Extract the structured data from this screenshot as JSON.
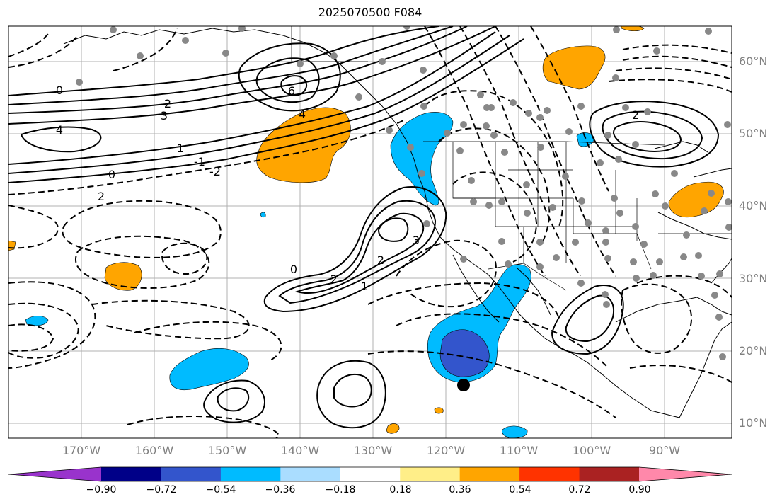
{
  "title": "2025070500 F084",
  "lat_labels": [
    "60°N",
    "50°N",
    "40°N",
    "30°N",
    "20°N",
    "10°N"
  ],
  "lon_labels": [
    "170°W",
    "160°W",
    "150°W",
    "140°W",
    "130°W",
    "120°W",
    "110°W",
    "100°W",
    "90°W"
  ],
  "colorbar": {
    "colors": [
      "#9933cc",
      "#000088",
      "#3355cc",
      "#00bbff",
      "#aaddff",
      "#ffffff",
      "#ffee88",
      "#ffa500",
      "#ff3300",
      "#aa2222",
      "#ff88aa"
    ],
    "tick_labels": [
      "−0.90",
      "−0.72",
      "−0.54",
      "−0.36",
      "−0.18",
      "0.18",
      "0.36",
      "0.54",
      "0.72",
      "0.90"
    ]
  },
  "contour_labels": [
    "0",
    "2",
    "4",
    "6",
    "3",
    "-2",
    "-1",
    "1",
    "0",
    "2",
    "-2",
    "1",
    "3",
    "0",
    "2",
    "2",
    "4"
  ],
  "marker": {
    "lat": 15.5,
    "lon": -117,
    "color": "#000000"
  },
  "station_color": "#888888"
}
